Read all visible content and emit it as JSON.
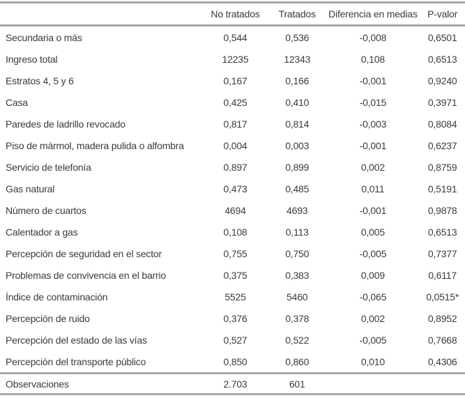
{
  "colors": {
    "rule": "#a7a7a7",
    "text": "#3b3b3b"
  },
  "table": {
    "columns": [
      "",
      "No tratados",
      "Tratados",
      "Diferencia en medias",
      "P-valor"
    ],
    "rows": [
      [
        "Secundaria o más",
        "0,544",
        "0,536",
        "-0,008",
        "0,6501"
      ],
      [
        "Ingreso total",
        "12235",
        "12343",
        "0,108",
        "0,6513"
      ],
      [
        "Estratos 4, 5 y 6",
        "0,167",
        "0,166",
        "-0,001",
        "0,9240"
      ],
      [
        "Casa",
        "0,425",
        "0,410",
        "-0,015",
        "0,3971"
      ],
      [
        "Paredes de ladrillo revocado",
        "0,817",
        "0,814",
        "-0,003",
        "0,8084"
      ],
      [
        "Piso de mármol, madera pulida o alfombra",
        "0,004",
        "0,003",
        "-0,001",
        "0,6237"
      ],
      [
        "Servicio de telefonía",
        "0,897",
        "0,899",
        "0,002",
        "0,8759"
      ],
      [
        "Gas natural",
        "0,473",
        "0,485",
        "0,011",
        "0,5191"
      ],
      [
        "Número de cuartos",
        "4694",
        "4693",
        "-0,001",
        "0,9878"
      ],
      [
        "Calentador a gas",
        "0,108",
        "0,113",
        "0,005",
        "0,6513"
      ],
      [
        "Percepción de seguridad en el sector",
        "0,755",
        "0,750",
        "-0,005",
        "0,7377"
      ],
      [
        "Problemas de convivencia en el barrio",
        "0,375",
        "0,383",
        "0,009",
        "0,6117"
      ],
      [
        "Índice de contaminación",
        "5525",
        "5460",
        "-0,065",
        "0,0515*"
      ],
      [
        "Percepción de ruido",
        "0,376",
        "0,378",
        "0,002",
        "0,8952"
      ],
      [
        "Percepción del estado de las vías",
        "0,527",
        "0,522",
        "-0,005",
        "0,7668"
      ],
      [
        "Percepción del transporte público",
        "0,850",
        "0,860",
        "0,010",
        "0,4306"
      ]
    ],
    "footer": [
      "Observaciones",
      "2.703",
      "601",
      "",
      ""
    ]
  }
}
